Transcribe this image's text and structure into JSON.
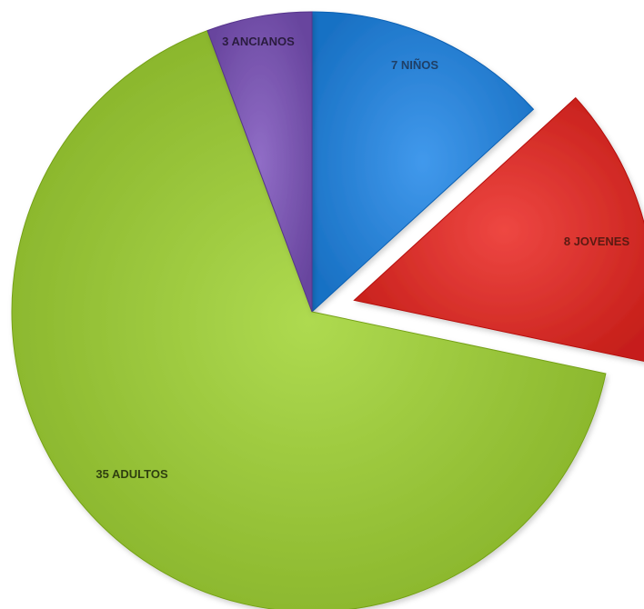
{
  "chart_data": {
    "type": "pie",
    "categories": [
      "NIÑOS",
      "JOVENES",
      "ADULTOS",
      "ANCIANOS"
    ],
    "values": [
      7,
      8,
      35,
      3
    ],
    "labels": [
      "7 NIÑOS",
      "8 JOVENES",
      "35 ADULTOS",
      "3 ANCIANOS"
    ],
    "colors": [
      "#2b83d6",
      "#d8312c",
      "#98c43a",
      "#7a57b0"
    ],
    "label_colors": [
      "#1f3f66",
      "#5a1a12",
      "#2f3f10",
      "#2a1c3f"
    ],
    "exploded": [
      "JOVENES"
    ],
    "start": "12 o'clock",
    "direction": "clockwise",
    "legend": "none"
  }
}
